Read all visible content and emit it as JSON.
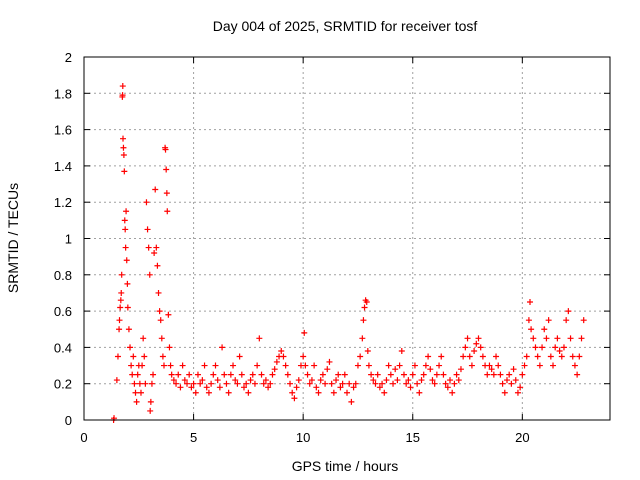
{
  "chart_data": {
    "type": "scatter",
    "title": "Day 004 of 2025, SRMTID for receiver tosf",
    "xlabel": "GPS time / hours",
    "ylabel": "SRMTID / TECUs",
    "xlim": [
      0,
      24
    ],
    "ylim": [
      0,
      2
    ],
    "xticks": [
      0,
      5,
      10,
      15,
      20
    ],
    "xtick_labels": [
      "0",
      "5",
      "10",
      "15",
      "20"
    ],
    "yticks": [
      0,
      0.2,
      0.4,
      0.6,
      0.8,
      1,
      1.2,
      1.4,
      1.6,
      1.8,
      2
    ],
    "ytick_labels": [
      "0",
      "0.2",
      "0.4",
      "0.6",
      "0.8",
      "1",
      "1.2",
      "1.4",
      "1.6",
      "1.8",
      "2"
    ],
    "grid": true,
    "marker": "+",
    "series": [
      {
        "name": "SRMTID",
        "color": "#ff0000",
        "points": [
          [
            1.35,
            0.0
          ],
          [
            1.37,
            0.01
          ],
          [
            1.5,
            0.22
          ],
          [
            1.55,
            0.35
          ],
          [
            1.6,
            0.5
          ],
          [
            1.62,
            0.55
          ],
          [
            1.65,
            0.62
          ],
          [
            1.68,
            0.66
          ],
          [
            1.7,
            0.7
          ],
          [
            1.72,
            0.8
          ],
          [
            1.75,
            1.78
          ],
          [
            1.76,
            1.79
          ],
          [
            1.77,
            1.84
          ],
          [
            1.78,
            1.55
          ],
          [
            1.8,
            1.5
          ],
          [
            1.82,
            1.46
          ],
          [
            1.84,
            1.37
          ],
          [
            1.86,
            1.1
          ],
          [
            1.88,
            1.05
          ],
          [
            1.9,
            0.95
          ],
          [
            1.92,
            1.15
          ],
          [
            1.95,
            0.88
          ],
          [
            1.98,
            0.75
          ],
          [
            2.0,
            0.62
          ],
          [
            2.05,
            0.5
          ],
          [
            2.1,
            0.4
          ],
          [
            2.15,
            0.3
          ],
          [
            2.2,
            0.25
          ],
          [
            2.25,
            0.35
          ],
          [
            2.3,
            0.2
          ],
          [
            2.35,
            0.15
          ],
          [
            2.4,
            0.1
          ],
          [
            2.45,
            0.25
          ],
          [
            2.5,
            0.3
          ],
          [
            2.55,
            0.2
          ],
          [
            2.6,
            0.15
          ],
          [
            2.65,
            0.3
          ],
          [
            2.7,
            0.45
          ],
          [
            2.75,
            0.35
          ],
          [
            2.8,
            0.2
          ],
          [
            2.85,
            1.2
          ],
          [
            2.9,
            1.05
          ],
          [
            2.95,
            0.95
          ],
          [
            3.0,
            0.8
          ],
          [
            3.02,
            0.05
          ],
          [
            3.05,
            0.1
          ],
          [
            3.1,
            0.2
          ],
          [
            3.15,
            0.25
          ],
          [
            3.2,
            0.92
          ],
          [
            3.25,
            1.27
          ],
          [
            3.3,
            0.95
          ],
          [
            3.35,
            0.85
          ],
          [
            3.4,
            0.7
          ],
          [
            3.45,
            0.6
          ],
          [
            3.5,
            0.55
          ],
          [
            3.55,
            0.45
          ],
          [
            3.6,
            0.35
          ],
          [
            3.65,
            0.3
          ],
          [
            3.7,
            1.5
          ],
          [
            3.72,
            1.49
          ],
          [
            3.75,
            1.38
          ],
          [
            3.78,
            1.25
          ],
          [
            3.8,
            1.15
          ],
          [
            3.85,
            0.58
          ],
          [
            3.9,
            0.4
          ],
          [
            3.95,
            0.3
          ],
          [
            4.0,
            0.25
          ],
          [
            4.1,
            0.22
          ],
          [
            4.2,
            0.2
          ],
          [
            4.3,
            0.25
          ],
          [
            4.4,
            0.18
          ],
          [
            4.5,
            0.3
          ],
          [
            4.6,
            0.22
          ],
          [
            4.7,
            0.2
          ],
          [
            4.8,
            0.25
          ],
          [
            4.9,
            0.18
          ],
          [
            5.0,
            0.2
          ],
          [
            5.1,
            0.15
          ],
          [
            5.2,
            0.25
          ],
          [
            5.3,
            0.2
          ],
          [
            5.4,
            0.22
          ],
          [
            5.5,
            0.3
          ],
          [
            5.6,
            0.18
          ],
          [
            5.7,
            0.15
          ],
          [
            5.8,
            0.2
          ],
          [
            5.9,
            0.25
          ],
          [
            6.0,
            0.3
          ],
          [
            6.1,
            0.22
          ],
          [
            6.2,
            0.18
          ],
          [
            6.3,
            0.4
          ],
          [
            6.4,
            0.25
          ],
          [
            6.5,
            0.2
          ],
          [
            6.6,
            0.15
          ],
          [
            6.7,
            0.25
          ],
          [
            6.8,
            0.3
          ],
          [
            6.9,
            0.22
          ],
          [
            7.0,
            0.2
          ],
          [
            7.1,
            0.35
          ],
          [
            7.2,
            0.25
          ],
          [
            7.3,
            0.18
          ],
          [
            7.4,
            0.2
          ],
          [
            7.5,
            0.15
          ],
          [
            7.6,
            0.22
          ],
          [
            7.7,
            0.25
          ],
          [
            7.8,
            0.2
          ],
          [
            7.9,
            0.3
          ],
          [
            8.0,
            0.45
          ],
          [
            8.1,
            0.25
          ],
          [
            8.2,
            0.2
          ],
          [
            8.3,
            0.22
          ],
          [
            8.4,
            0.18
          ],
          [
            8.5,
            0.2
          ],
          [
            8.6,
            0.25
          ],
          [
            8.7,
            0.28
          ],
          [
            8.8,
            0.32
          ],
          [
            8.9,
            0.35
          ],
          [
            9.0,
            0.38
          ],
          [
            9.1,
            0.35
          ],
          [
            9.2,
            0.3
          ],
          [
            9.3,
            0.25
          ],
          [
            9.4,
            0.2
          ],
          [
            9.5,
            0.15
          ],
          [
            9.6,
            0.12
          ],
          [
            9.7,
            0.18
          ],
          [
            9.8,
            0.22
          ],
          [
            9.9,
            0.3
          ],
          [
            10.0,
            0.35
          ],
          [
            10.05,
            0.48
          ],
          [
            10.1,
            0.3
          ],
          [
            10.2,
            0.25
          ],
          [
            10.3,
            0.2
          ],
          [
            10.4,
            0.22
          ],
          [
            10.5,
            0.3
          ],
          [
            10.6,
            0.18
          ],
          [
            10.7,
            0.15
          ],
          [
            10.8,
            0.22
          ],
          [
            10.9,
            0.25
          ],
          [
            11.0,
            0.2
          ],
          [
            11.1,
            0.28
          ],
          [
            11.2,
            0.32
          ],
          [
            11.3,
            0.2
          ],
          [
            11.4,
            0.15
          ],
          [
            11.5,
            0.22
          ],
          [
            11.6,
            0.25
          ],
          [
            11.7,
            0.18
          ],
          [
            11.8,
            0.2
          ],
          [
            11.9,
            0.25
          ],
          [
            12.0,
            0.15
          ],
          [
            12.1,
            0.2
          ],
          [
            12.2,
            0.1
          ],
          [
            12.3,
            0.18
          ],
          [
            12.4,
            0.2
          ],
          [
            12.5,
            0.3
          ],
          [
            12.6,
            0.35
          ],
          [
            12.7,
            0.45
          ],
          [
            12.75,
            0.55
          ],
          [
            12.8,
            0.62
          ],
          [
            12.85,
            0.66
          ],
          [
            12.9,
            0.65
          ],
          [
            12.95,
            0.38
          ],
          [
            13.0,
            0.3
          ],
          [
            13.1,
            0.25
          ],
          [
            13.2,
            0.22
          ],
          [
            13.3,
            0.2
          ],
          [
            13.4,
            0.25
          ],
          [
            13.5,
            0.18
          ],
          [
            13.6,
            0.2
          ],
          [
            13.7,
            0.15
          ],
          [
            13.8,
            0.22
          ],
          [
            13.9,
            0.3
          ],
          [
            14.0,
            0.25
          ],
          [
            14.1,
            0.2
          ],
          [
            14.2,
            0.28
          ],
          [
            14.3,
            0.22
          ],
          [
            14.4,
            0.3
          ],
          [
            14.5,
            0.38
          ],
          [
            14.6,
            0.25
          ],
          [
            14.7,
            0.2
          ],
          [
            14.8,
            0.22
          ],
          [
            14.9,
            0.18
          ],
          [
            15.0,
            0.25
          ],
          [
            15.1,
            0.3
          ],
          [
            15.2,
            0.2
          ],
          [
            15.3,
            0.15
          ],
          [
            15.4,
            0.22
          ],
          [
            15.5,
            0.25
          ],
          [
            15.6,
            0.3
          ],
          [
            15.7,
            0.35
          ],
          [
            15.8,
            0.28
          ],
          [
            15.9,
            0.22
          ],
          [
            16.0,
            0.2
          ],
          [
            16.1,
            0.25
          ],
          [
            16.2,
            0.3
          ],
          [
            16.3,
            0.35
          ],
          [
            16.4,
            0.25
          ],
          [
            16.5,
            0.2
          ],
          [
            16.6,
            0.18
          ],
          [
            16.7,
            0.22
          ],
          [
            16.8,
            0.15
          ],
          [
            16.9,
            0.2
          ],
          [
            17.0,
            0.25
          ],
          [
            17.1,
            0.22
          ],
          [
            17.2,
            0.28
          ],
          [
            17.3,
            0.35
          ],
          [
            17.4,
            0.4
          ],
          [
            17.5,
            0.45
          ],
          [
            17.6,
            0.35
          ],
          [
            17.7,
            0.3
          ],
          [
            17.8,
            0.38
          ],
          [
            17.9,
            0.42
          ],
          [
            18.0,
            0.45
          ],
          [
            18.1,
            0.4
          ],
          [
            18.2,
            0.35
          ],
          [
            18.3,
            0.3
          ],
          [
            18.4,
            0.25
          ],
          [
            18.5,
            0.3
          ],
          [
            18.6,
            0.28
          ],
          [
            18.7,
            0.25
          ],
          [
            18.8,
            0.35
          ],
          [
            18.9,
            0.3
          ],
          [
            19.0,
            0.25
          ],
          [
            19.1,
            0.2
          ],
          [
            19.2,
            0.15
          ],
          [
            19.3,
            0.22
          ],
          [
            19.4,
            0.25
          ],
          [
            19.5,
            0.2
          ],
          [
            19.6,
            0.28
          ],
          [
            19.7,
            0.22
          ],
          [
            19.8,
            0.15
          ],
          [
            19.9,
            0.18
          ],
          [
            20.0,
            0.25
          ],
          [
            20.1,
            0.3
          ],
          [
            20.2,
            0.35
          ],
          [
            20.3,
            0.55
          ],
          [
            20.35,
            0.65
          ],
          [
            20.4,
            0.5
          ],
          [
            20.5,
            0.45
          ],
          [
            20.6,
            0.4
          ],
          [
            20.7,
            0.35
          ],
          [
            20.8,
            0.3
          ],
          [
            20.9,
            0.4
          ],
          [
            21.0,
            0.5
          ],
          [
            21.1,
            0.45
          ],
          [
            21.2,
            0.55
          ],
          [
            21.3,
            0.35
          ],
          [
            21.4,
            0.3
          ],
          [
            21.5,
            0.4
          ],
          [
            21.6,
            0.45
          ],
          [
            21.7,
            0.38
          ],
          [
            21.8,
            0.35
          ],
          [
            21.9,
            0.4
          ],
          [
            22.0,
            0.55
          ],
          [
            22.1,
            0.6
          ],
          [
            22.2,
            0.45
          ],
          [
            22.3,
            0.35
          ],
          [
            22.4,
            0.3
          ],
          [
            22.5,
            0.25
          ],
          [
            22.6,
            0.35
          ],
          [
            22.7,
            0.45
          ],
          [
            22.8,
            0.55
          ]
        ]
      }
    ]
  }
}
